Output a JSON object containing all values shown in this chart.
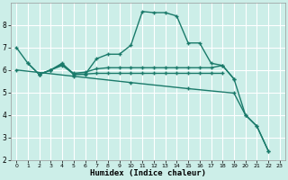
{
  "xlabel": "Humidex (Indice chaleur)",
  "background_color": "#cceee8",
  "grid_color": "#ffffff",
  "line_color": "#1a7a6a",
  "xlim": [
    -0.5,
    23.5
  ],
  "ylim": [
    2,
    9
  ],
  "yticks": [
    2,
    3,
    4,
    5,
    6,
    7,
    8
  ],
  "xticks": [
    0,
    1,
    2,
    3,
    4,
    5,
    6,
    7,
    8,
    9,
    10,
    11,
    12,
    13,
    14,
    15,
    16,
    17,
    18,
    19,
    20,
    21,
    22,
    23
  ],
  "line1_x": [
    0,
    1,
    2,
    3,
    4,
    5,
    6,
    7,
    8,
    9,
    10,
    11,
    12,
    13,
    14,
    15,
    16,
    17,
    18,
    19,
    20,
    21,
    22
  ],
  "line1_y": [
    7.0,
    6.3,
    5.8,
    6.0,
    6.3,
    5.8,
    5.8,
    6.5,
    6.7,
    6.7,
    7.1,
    8.6,
    8.55,
    8.55,
    8.4,
    7.2,
    7.2,
    6.3,
    6.2,
    5.6,
    4.0,
    3.5,
    2.4
  ],
  "line2_x": [
    1,
    2,
    3,
    4,
    5,
    6,
    7,
    8,
    9,
    10,
    11,
    12,
    13,
    14,
    15,
    16,
    17,
    18,
    19
  ],
  "line2_y": [
    6.3,
    5.8,
    6.0,
    6.25,
    5.85,
    5.9,
    6.05,
    6.1,
    6.1,
    6.1,
    6.1,
    6.1,
    6.1,
    6.1,
    6.1,
    6.1,
    6.1,
    6.2,
    5.6
  ],
  "line3_x": [
    2,
    3,
    4,
    5,
    6,
    7,
    8,
    9,
    10,
    11,
    12,
    13,
    14,
    15,
    16,
    17,
    18
  ],
  "line3_y": [
    5.8,
    6.0,
    6.2,
    5.82,
    5.82,
    5.85,
    5.85,
    5.85,
    5.85,
    5.85,
    5.85,
    5.85,
    5.85,
    5.85,
    5.85,
    5.85,
    5.85
  ],
  "line4_x": [
    0,
    5,
    10,
    15,
    19,
    20,
    21,
    22
  ],
  "line4_y": [
    6.0,
    5.72,
    5.44,
    5.17,
    4.97,
    4.0,
    3.5,
    2.4
  ]
}
